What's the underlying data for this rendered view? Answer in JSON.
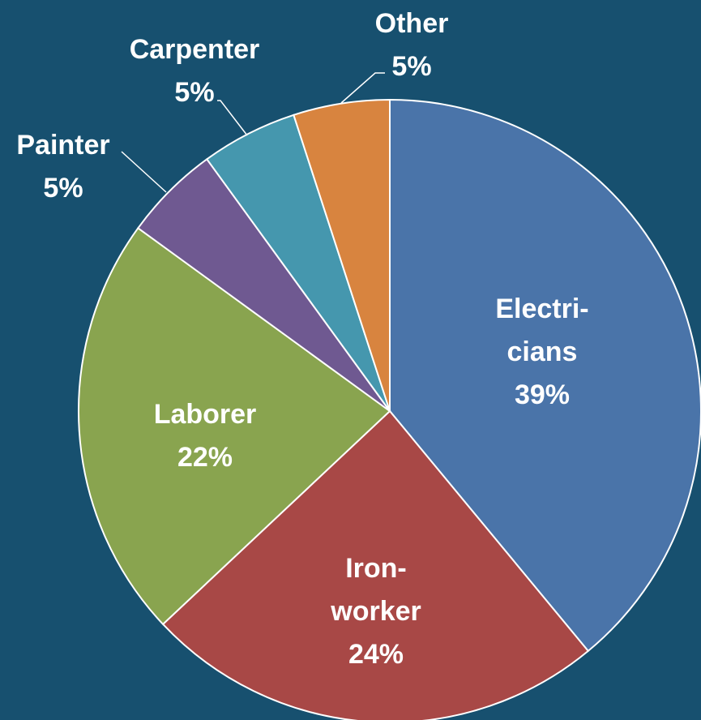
{
  "chart_data": {
    "type": "pie",
    "title": "",
    "slices": [
      {
        "name": "Electricians",
        "label_lines": [
          "Electri-",
          "cians"
        ],
        "value": 39,
        "value_label": "39%",
        "color": "#4a74a9"
      },
      {
        "name": "Ironworker",
        "label_lines": [
          "Iron-",
          "worker"
        ],
        "value": 24,
        "value_label": "24%",
        "color": "#a84846"
      },
      {
        "name": "Laborer",
        "label_lines": [
          "Laborer"
        ],
        "value": 22,
        "value_label": "22%",
        "color": "#89a44f"
      },
      {
        "name": "Painter",
        "label_lines": [
          "Painter"
        ],
        "value": 5,
        "value_label": "5%",
        "color": "#6f5991"
      },
      {
        "name": "Carpenter",
        "label_lines": [
          "Carpenter"
        ],
        "value": 5,
        "value_label": "5%",
        "color": "#4597ae"
      },
      {
        "name": "Other",
        "label_lines": [
          "Other"
        ],
        "value": 5,
        "value_label": "5%",
        "color": "#d8843f"
      }
    ],
    "start_angle": "12 o'clock",
    "direction": "clockwise",
    "legend": "none",
    "label_placement": "inside for large slices, outside with leader lines for small slices"
  }
}
